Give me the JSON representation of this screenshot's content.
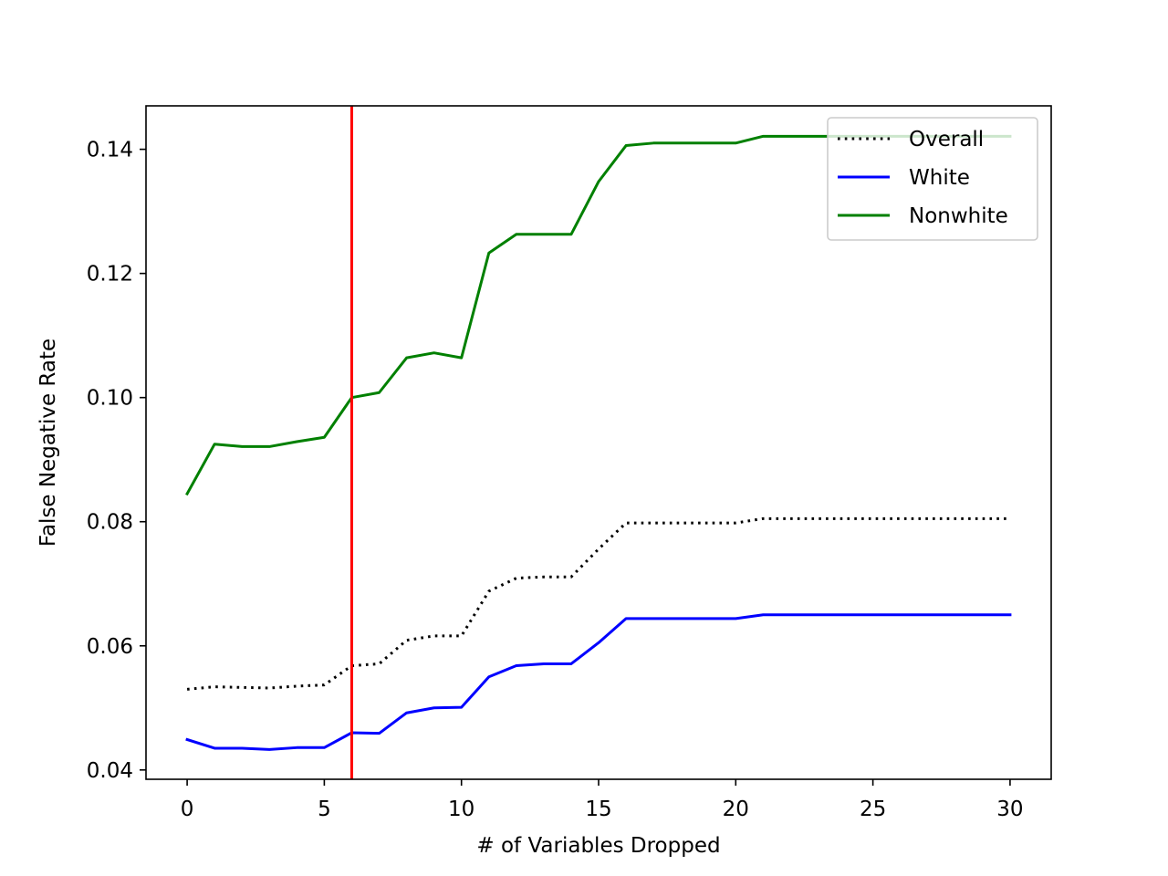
{
  "chart_data": {
    "type": "line",
    "xlabel": "# of Variables Dropped",
    "ylabel": "False Negative Rate",
    "xlim": [
      -1.5,
      31.5
    ],
    "ylim": [
      0.0385,
      0.147
    ],
    "xticks": [
      0,
      5,
      10,
      15,
      20,
      25,
      30
    ],
    "yticks": [
      0.04,
      0.06,
      0.08,
      0.1,
      0.12,
      0.14
    ],
    "ytick_labels": [
      "0.04",
      "0.06",
      "0.08",
      "0.10",
      "0.12",
      "0.14"
    ],
    "grid": false,
    "legend_position": "top-right",
    "x": [
      0,
      1,
      2,
      3,
      4,
      5,
      6,
      7,
      8,
      9,
      10,
      11,
      12,
      13,
      14,
      15,
      16,
      17,
      18,
      19,
      20,
      21,
      22,
      23,
      24,
      25,
      26,
      27,
      28,
      29,
      30
    ],
    "series": [
      {
        "name": "Overall",
        "color": "#000000",
        "style": "dotted",
        "values": [
          0.053,
          0.0534,
          0.0533,
          0.0532,
          0.0535,
          0.0537,
          0.0568,
          0.0571,
          0.0609,
          0.0616,
          0.0616,
          0.0688,
          0.0709,
          0.0711,
          0.0711,
          0.0756,
          0.0798,
          0.0798,
          0.0798,
          0.0798,
          0.0798,
          0.0805,
          0.0805,
          0.0805,
          0.0805,
          0.0805,
          0.0805,
          0.0805,
          0.0805,
          0.0805,
          0.0805
        ]
      },
      {
        "name": "White",
        "color": "#0000ff",
        "style": "solid",
        "values": [
          0.0449,
          0.0435,
          0.0435,
          0.0433,
          0.0436,
          0.0436,
          0.046,
          0.0459,
          0.0492,
          0.05,
          0.0501,
          0.055,
          0.0568,
          0.0571,
          0.0571,
          0.0605,
          0.0644,
          0.0644,
          0.0644,
          0.0644,
          0.0644,
          0.065,
          0.065,
          0.065,
          0.065,
          0.065,
          0.065,
          0.065,
          0.065,
          0.065,
          0.065
        ]
      },
      {
        "name": "Nonwhite",
        "color": "#008000",
        "style": "solid",
        "values": [
          0.0845,
          0.0925,
          0.0921,
          0.0921,
          0.0929,
          0.0936,
          0.1,
          0.1008,
          0.1064,
          0.1072,
          0.1064,
          0.1233,
          0.1263,
          0.1263,
          0.1263,
          0.1348,
          0.1406,
          0.141,
          0.141,
          0.141,
          0.141,
          0.1421,
          0.1421,
          0.1421,
          0.1421,
          0.1421,
          0.1421,
          0.1421,
          0.1421,
          0.1421,
          0.1421
        ]
      }
    ],
    "vline": {
      "x": 6,
      "color": "#ff0000"
    }
  }
}
